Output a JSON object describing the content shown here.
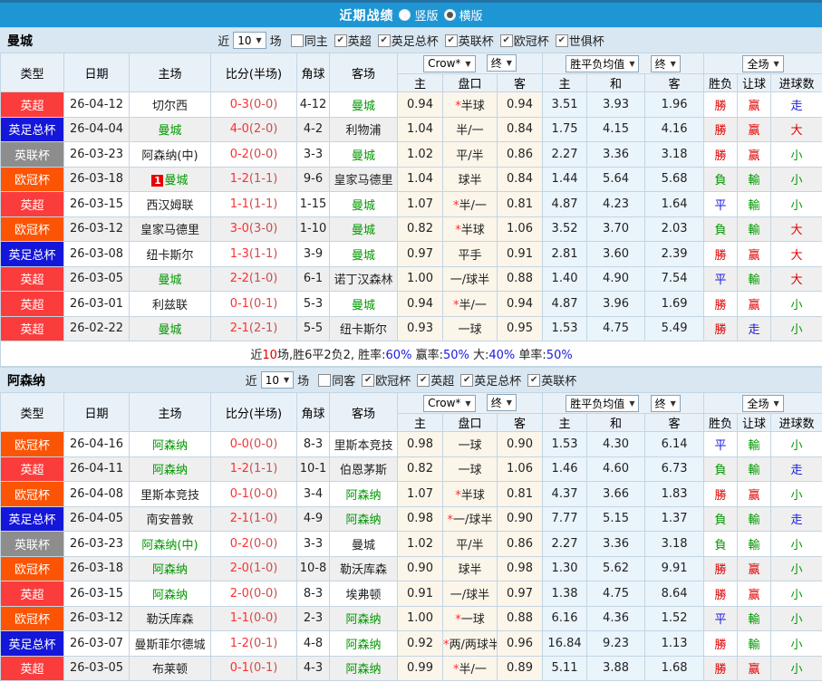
{
  "topbar": {
    "title": "近期战绩",
    "radios": [
      {
        "label": "竖版",
        "checked": false
      },
      {
        "label": "横版",
        "checked": true
      }
    ]
  },
  "table_header": {
    "col_type": "类型",
    "col_date": "日期",
    "col_home": "主场",
    "col_score": "比分(半场)",
    "col_corner": "角球",
    "col_away": "客场",
    "sub": [
      "主",
      "盘口",
      "客",
      "主",
      "和",
      "客",
      "胜负",
      "让球",
      "进球数"
    ]
  },
  "dropdowns": {
    "company": "Crow*",
    "state1": "终",
    "mean": "胜平负均值",
    "state2": "终",
    "scope": "全场"
  },
  "league_colors": {
    "英超": "#fb3c3c",
    "英足总杯": "#1416d9",
    "英联杯": "#8d8d8d",
    "欧冠杯": "#fb5404"
  },
  "result_colors": {
    "勝": "t-red",
    "負": "t-green",
    "平": "t-blue",
    "赢": "t-red",
    "輸": "t-green",
    "走": "t-blue",
    "大": "t-red",
    "小": "t-green"
  },
  "sections": [
    {
      "team": "曼城",
      "filter": {
        "prefix": "近",
        "games": "10",
        "suffix": "场",
        "same": {
          "label": "同主",
          "checked": false
        },
        "leagues": [
          {
            "label": "英超",
            "checked": true
          },
          {
            "label": "英足总杯",
            "checked": true
          },
          {
            "label": "英联杯",
            "checked": true
          },
          {
            "label": "欧冠杯",
            "checked": true
          },
          {
            "label": "世俱杯",
            "checked": true
          }
        ]
      },
      "rows": [
        {
          "lg": "英超",
          "date": "26-04-12",
          "home": "切尔西",
          "hg": false,
          "rank": false,
          "s": "0-3",
          "h": "(0-0)",
          "cr": "4-12",
          "away": "曼城",
          "ag": true,
          "o1": "0.94",
          "st": true,
          "hc": "半球",
          "o2": "0.94",
          "m1": "3.51",
          "m2": "3.93",
          "m3": "1.96",
          "r1": "勝",
          "r2": "赢",
          "r3": "走"
        },
        {
          "lg": "英足总杯",
          "date": "26-04-04",
          "home": "曼城",
          "hg": true,
          "rank": false,
          "s": "4-0",
          "h": "(2-0)",
          "cr": "4-2",
          "away": "利物浦",
          "ag": false,
          "o1": "1.04",
          "st": false,
          "hc": "半/一",
          "o2": "0.84",
          "m1": "1.75",
          "m2": "4.15",
          "m3": "4.16",
          "r1": "勝",
          "r2": "赢",
          "r3": "大"
        },
        {
          "lg": "英联杯",
          "date": "26-03-23",
          "home": "阿森纳(中)",
          "hg": false,
          "rank": false,
          "s": "0-2",
          "h": "(0-0)",
          "cr": "3-3",
          "away": "曼城",
          "ag": true,
          "o1": "1.02",
          "st": false,
          "hc": "平/半",
          "o2": "0.86",
          "m1": "2.27",
          "m2": "3.36",
          "m3": "3.18",
          "r1": "勝",
          "r2": "赢",
          "r3": "小"
        },
        {
          "lg": "欧冠杯",
          "date": "26-03-18",
          "home": "曼城",
          "hg": true,
          "rank": true,
          "s": "1-2",
          "h": "(1-1)",
          "cr": "9-6",
          "away": "皇家马德里",
          "ag": false,
          "o1": "1.04",
          "st": false,
          "hc": "球半",
          "o2": "0.84",
          "m1": "1.44",
          "m2": "5.64",
          "m3": "5.68",
          "r1": "負",
          "r2": "輸",
          "r3": "小"
        },
        {
          "lg": "英超",
          "date": "26-03-15",
          "home": "西汉姆联",
          "hg": false,
          "rank": false,
          "s": "1-1",
          "h": "(1-1)",
          "cr": "1-15",
          "away": "曼城",
          "ag": true,
          "o1": "1.07",
          "st": true,
          "hc": "半/一",
          "o2": "0.81",
          "m1": "4.87",
          "m2": "4.23",
          "m3": "1.64",
          "r1": "平",
          "r2": "輸",
          "r3": "小"
        },
        {
          "lg": "欧冠杯",
          "date": "26-03-12",
          "home": "皇家马德里",
          "hg": false,
          "rank": false,
          "s": "3-0",
          "h": "(3-0)",
          "cr": "1-10",
          "away": "曼城",
          "ag": true,
          "o1": "0.82",
          "st": true,
          "hc": "半球",
          "o2": "1.06",
          "m1": "3.52",
          "m2": "3.70",
          "m3": "2.03",
          "r1": "負",
          "r2": "輸",
          "r3": "大"
        },
        {
          "lg": "英足总杯",
          "date": "26-03-08",
          "home": "纽卡斯尔",
          "hg": false,
          "rank": false,
          "s": "1-3",
          "h": "(1-1)",
          "cr": "3-9",
          "away": "曼城",
          "ag": true,
          "o1": "0.97",
          "st": false,
          "hc": "平手",
          "o2": "0.91",
          "m1": "2.81",
          "m2": "3.60",
          "m3": "2.39",
          "r1": "勝",
          "r2": "赢",
          "r3": "大"
        },
        {
          "lg": "英超",
          "date": "26-03-05",
          "home": "曼城",
          "hg": true,
          "rank": false,
          "s": "2-2",
          "h": "(1-0)",
          "cr": "6-1",
          "away": "诺丁汉森林",
          "ag": false,
          "o1": "1.00",
          "st": false,
          "hc": "一/球半",
          "o2": "0.88",
          "m1": "1.40",
          "m2": "4.90",
          "m3": "7.54",
          "r1": "平",
          "r2": "輸",
          "r3": "大"
        },
        {
          "lg": "英超",
          "date": "26-03-01",
          "home": "利兹联",
          "hg": false,
          "rank": false,
          "s": "0-1",
          "h": "(0-1)",
          "cr": "5-3",
          "away": "曼城",
          "ag": true,
          "o1": "0.94",
          "st": true,
          "hc": "半/一",
          "o2": "0.94",
          "m1": "4.87",
          "m2": "3.96",
          "m3": "1.69",
          "r1": "勝",
          "r2": "赢",
          "r3": "小"
        },
        {
          "lg": "英超",
          "date": "26-02-22",
          "home": "曼城",
          "hg": true,
          "rank": false,
          "s": "2-1",
          "h": "(2-1)",
          "cr": "5-5",
          "away": "纽卡斯尔",
          "ag": false,
          "o1": "0.93",
          "st": false,
          "hc": "一球",
          "o2": "0.95",
          "m1": "1.53",
          "m2": "4.75",
          "m3": "5.49",
          "r1": "勝",
          "r2": "走",
          "r3": "小"
        }
      ],
      "summary": [
        {
          "t": "近"
        },
        {
          "t": "10",
          "c": "t-red"
        },
        {
          "t": "场,胜6平2负2, 胜率:"
        },
        {
          "t": "60%",
          "c": "t-blue"
        },
        {
          "t": " 赢率:"
        },
        {
          "t": "50%",
          "c": "t-blue"
        },
        {
          "t": " 大:"
        },
        {
          "t": "40%",
          "c": "t-blue"
        },
        {
          "t": " 单率:"
        },
        {
          "t": "50%",
          "c": "t-blue"
        }
      ]
    },
    {
      "team": "阿森纳",
      "filter": {
        "prefix": "近",
        "games": "10",
        "suffix": "场",
        "same": {
          "label": "同客",
          "checked": false
        },
        "leagues": [
          {
            "label": "欧冠杯",
            "checked": true
          },
          {
            "label": "英超",
            "checked": true
          },
          {
            "label": "英足总杯",
            "checked": true
          },
          {
            "label": "英联杯",
            "checked": true
          }
        ]
      },
      "rows": [
        {
          "lg": "欧冠杯",
          "date": "26-04-16",
          "home": "阿森纳",
          "hg": true,
          "rank": false,
          "s": "0-0",
          "h": "(0-0)",
          "cr": "8-3",
          "away": "里斯本竞技",
          "ag": false,
          "o1": "0.98",
          "st": false,
          "hc": "一球",
          "o2": "0.90",
          "m1": "1.53",
          "m2": "4.30",
          "m3": "6.14",
          "r1": "平",
          "r2": "輸",
          "r3": "小"
        },
        {
          "lg": "英超",
          "date": "26-04-11",
          "home": "阿森纳",
          "hg": true,
          "rank": false,
          "s": "1-2",
          "h": "(1-1)",
          "cr": "10-1",
          "away": "伯恩茅斯",
          "ag": false,
          "o1": "0.82",
          "st": false,
          "hc": "一球",
          "o2": "1.06",
          "m1": "1.46",
          "m2": "4.60",
          "m3": "6.73",
          "r1": "負",
          "r2": "輸",
          "r3": "走"
        },
        {
          "lg": "欧冠杯",
          "date": "26-04-08",
          "home": "里斯本竞技",
          "hg": false,
          "rank": false,
          "s": "0-1",
          "h": "(0-0)",
          "cr": "3-4",
          "away": "阿森纳",
          "ag": true,
          "o1": "1.07",
          "st": true,
          "hc": "半球",
          "o2": "0.81",
          "m1": "4.37",
          "m2": "3.66",
          "m3": "1.83",
          "r1": "勝",
          "r2": "赢",
          "r3": "小"
        },
        {
          "lg": "英足总杯",
          "date": "26-04-05",
          "home": "南安普敦",
          "hg": false,
          "rank": false,
          "s": "2-1",
          "h": "(1-0)",
          "cr": "4-9",
          "away": "阿森纳",
          "ag": true,
          "o1": "0.98",
          "st": true,
          "hc": "一/球半",
          "o2": "0.90",
          "m1": "7.77",
          "m2": "5.15",
          "m3": "1.37",
          "r1": "負",
          "r2": "輸",
          "r3": "走"
        },
        {
          "lg": "英联杯",
          "date": "26-03-23",
          "home": "阿森纳(中)",
          "hg": true,
          "rank": false,
          "s": "0-2",
          "h": "(0-0)",
          "cr": "3-3",
          "away": "曼城",
          "ag": false,
          "o1": "1.02",
          "st": false,
          "hc": "平/半",
          "o2": "0.86",
          "m1": "2.27",
          "m2": "3.36",
          "m3": "3.18",
          "r1": "負",
          "r2": "輸",
          "r3": "小"
        },
        {
          "lg": "欧冠杯",
          "date": "26-03-18",
          "home": "阿森纳",
          "hg": true,
          "rank": false,
          "s": "2-0",
          "h": "(1-0)",
          "cr": "10-8",
          "away": "勒沃库森",
          "ag": false,
          "o1": "0.90",
          "st": false,
          "hc": "球半",
          "o2": "0.98",
          "m1": "1.30",
          "m2": "5.62",
          "m3": "9.91",
          "r1": "勝",
          "r2": "赢",
          "r3": "小"
        },
        {
          "lg": "英超",
          "date": "26-03-15",
          "home": "阿森纳",
          "hg": true,
          "rank": false,
          "s": "2-0",
          "h": "(0-0)",
          "cr": "8-3",
          "away": "埃弗顿",
          "ag": false,
          "o1": "0.91",
          "st": false,
          "hc": "一/球半",
          "o2": "0.97",
          "m1": "1.38",
          "m2": "4.75",
          "m3": "8.64",
          "r1": "勝",
          "r2": "赢",
          "r3": "小"
        },
        {
          "lg": "欧冠杯",
          "date": "26-03-12",
          "home": "勒沃库森",
          "hg": false,
          "rank": false,
          "s": "1-1",
          "h": "(0-0)",
          "cr": "2-3",
          "away": "阿森纳",
          "ag": true,
          "o1": "1.00",
          "st": true,
          "hc": "一球",
          "o2": "0.88",
          "m1": "6.16",
          "m2": "4.36",
          "m3": "1.52",
          "r1": "平",
          "r2": "輸",
          "r3": "小"
        },
        {
          "lg": "英足总杯",
          "date": "26-03-07",
          "home": "曼斯菲尔德城",
          "hg": false,
          "rank": false,
          "s": "1-2",
          "h": "(0-1)",
          "cr": "4-8",
          "away": "阿森纳",
          "ag": true,
          "o1": "0.92",
          "st": true,
          "hc": "两/两球半",
          "o2": "0.96",
          "m1": "16.84",
          "m2": "9.23",
          "m3": "1.13",
          "r1": "勝",
          "r2": "輸",
          "r3": "小"
        },
        {
          "lg": "英超",
          "date": "26-03-05",
          "home": "布莱顿",
          "hg": false,
          "rank": false,
          "s": "0-1",
          "h": "(0-1)",
          "cr": "4-3",
          "away": "阿森纳",
          "ag": true,
          "o1": "0.99",
          "st": true,
          "hc": "半/一",
          "o2": "0.89",
          "m1": "5.11",
          "m2": "3.88",
          "m3": "1.68",
          "r1": "勝",
          "r2": "赢",
          "r3": "小"
        }
      ],
      "summary": null
    }
  ]
}
